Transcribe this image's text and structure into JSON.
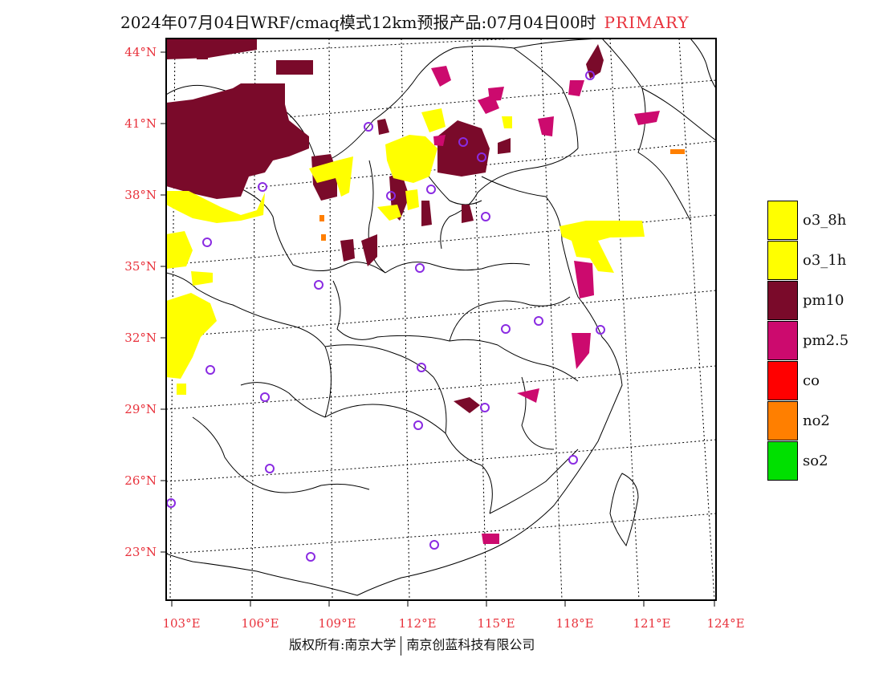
{
  "header": {
    "title": "2024年07月04日WRF/cmaq模式12km预报产品:07月04日00时",
    "tag": "PRIMARY"
  },
  "map": {
    "lat_labels": [
      "44°N",
      "41°N",
      "38°N",
      "35°N",
      "32°N",
      "29°N",
      "26°N",
      "23°N"
    ],
    "lon_labels": [
      "103°E",
      "106°E",
      "109°E",
      "112°E",
      "115°E",
      "118°E",
      "121°E",
      "124°E"
    ],
    "colors": {
      "o3_8h": "#ffff00",
      "pm10": "#7a0a2a",
      "pm2_5": "#cc0a6e",
      "no2": "#ff7f00",
      "station_marker": "#8a2be2",
      "frame": "#000000",
      "label": "#e8323c"
    }
  },
  "legend": {
    "items": [
      {
        "label": "o3_8h",
        "color": "#ffff00"
      },
      {
        "label": "o3_1h",
        "color": "#ffff00"
      },
      {
        "label": "pm10",
        "color": "#7a0a2a"
      },
      {
        "label": "pm2.5",
        "color": "#cc0a6e"
      },
      {
        "label": "co",
        "color": "#ff0000"
      },
      {
        "label": "no2",
        "color": "#ff7f00"
      },
      {
        "label": "so2",
        "color": "#00e000"
      }
    ]
  },
  "footer": {
    "copyright_left": "版权所有:南京大学",
    "copyright_right": "南京创蓝科技有限公司"
  }
}
